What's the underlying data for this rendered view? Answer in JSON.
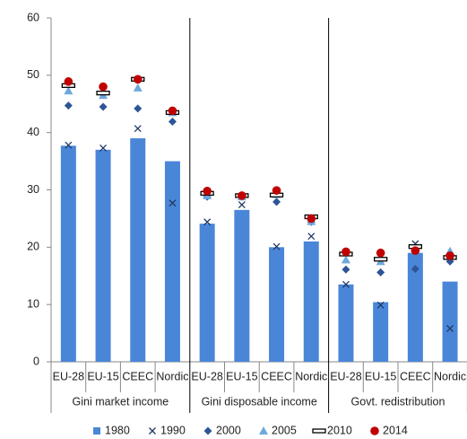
{
  "chart_data": {
    "type": "bar",
    "categories": [
      "EU-28",
      "EU-15",
      "CEEC",
      "Nordic",
      "EU-28",
      "EU-15",
      "CEEC",
      "Nordic",
      "EU-28",
      "EU-15",
      "CEEC",
      "Nordic"
    ],
    "groups": [
      "Gini market income",
      "Gini disposable income",
      "Govt. redistribution"
    ],
    "ylim": [
      0,
      60
    ],
    "yticks": [
      0,
      10,
      20,
      30,
      40,
      50,
      60
    ],
    "series": [
      {
        "name": "1980",
        "marker": "bar",
        "color": "#4a86d8",
        "values": [
          37.7,
          37.0,
          39.0,
          35.0,
          24.1,
          26.5,
          20.0,
          21.0,
          13.5,
          10.4,
          19.0,
          14.0
        ]
      },
      {
        "name": "1990",
        "marker": "x",
        "color": "#1f3864",
        "values": [
          37.8,
          37.3,
          40.7,
          27.7,
          24.4,
          27.4,
          20.1,
          21.9,
          13.5,
          9.9,
          20.6,
          5.8
        ]
      },
      {
        "name": "2000",
        "marker": "diamond",
        "color": "#2e5597",
        "values": [
          44.7,
          44.5,
          44.2,
          41.9,
          28.8,
          28.8,
          27.9,
          24.4,
          16.1,
          15.6,
          16.2,
          17.5
        ]
      },
      {
        "name": "2005",
        "marker": "triangle",
        "color": "#6fa8dc",
        "values": [
          47.3,
          46.5,
          47.8,
          43.5,
          29.0,
          28.8,
          29.2,
          24.5,
          17.8,
          17.5,
          19.7,
          19.3
        ]
      },
      {
        "name": "2010",
        "marker": "dash",
        "color": "#000000",
        "values": [
          48.2,
          46.9,
          49.3,
          43.5,
          29.4,
          29.0,
          29.1,
          25.3,
          18.8,
          17.9,
          20.1,
          18.2
        ]
      },
      {
        "name": "2014",
        "marker": "circle",
        "color": "#c00000",
        "values": [
          48.9,
          48.0,
          49.3,
          43.8,
          29.8,
          29.0,
          29.9,
          25.0,
          19.2,
          19.0,
          19.4,
          18.5
        ]
      }
    ]
  }
}
